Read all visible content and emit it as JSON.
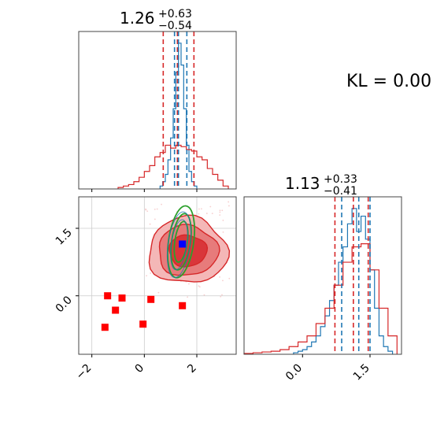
{
  "chart_data": [
    {
      "type": "histogram",
      "panel": "top-left marginal",
      "title": {
        "median": "1.26",
        "plus": "+0.63",
        "minus": "−0.54"
      },
      "xlim": [
        -2.5,
        3.5
      ],
      "x_ticks": [
        -2,
        0,
        2
      ],
      "series": [
        {
          "color": "#1f77b4",
          "bins": [
            0.6,
            0.7,
            0.8,
            0.9,
            1.0,
            1.1,
            1.2,
            1.3,
            1.4,
            1.5,
            1.6,
            1.7,
            1.8,
            1.9,
            2.0
          ],
          "heights": [
            0.02,
            0.05,
            0.1,
            0.2,
            0.35,
            0.55,
            0.8,
            1.0,
            0.85,
            0.55,
            0.3,
            0.12,
            0.05,
            0.02
          ]
        },
        {
          "color": "#d62728",
          "bins": [
            -1.0,
            -0.8,
            -0.6,
            -0.4,
            -0.2,
            0.0,
            0.2,
            0.4,
            0.6,
            0.8,
            1.0,
            1.2,
            1.4,
            1.6,
            1.8,
            2.0,
            2.2,
            2.4,
            2.6,
            2.8,
            3.0,
            3.2
          ],
          "heights": [
            0.01,
            0.02,
            0.03,
            0.05,
            0.08,
            0.12,
            0.16,
            0.22,
            0.25,
            0.3,
            0.28,
            0.3,
            0.29,
            0.27,
            0.26,
            0.22,
            0.2,
            0.14,
            0.1,
            0.06,
            0.02
          ]
        }
      ],
      "quantile_lines": [
        {
          "color": "#d62728",
          "x": [
            0.72,
            1.26,
            1.89
          ]
        },
        {
          "color": "#1f77b4",
          "x": [
            1.15,
            1.3,
            1.62
          ]
        }
      ]
    },
    {
      "type": "scatter",
      "panel": "bottom-left 2D",
      "xlim": [
        -2.5,
        3.5
      ],
      "ylim": [
        -1.3,
        2.2
      ],
      "x_ticks": [
        -2,
        0,
        2
      ],
      "y_ticks": [
        0.0,
        1.5
      ],
      "grid": true,
      "red_markers": [
        [
          -1.4,
          0.0
        ],
        [
          -0.85,
          -0.05
        ],
        [
          -1.1,
          -0.32
        ],
        [
          -1.5,
          -0.7
        ],
        [
          -0.05,
          -0.63
        ],
        [
          0.25,
          -0.08
        ],
        [
          1.45,
          -0.22
        ]
      ],
      "blue_marker": [
        1.45,
        1.15
      ],
      "red_contour_center": [
        1.65,
        1.0
      ],
      "green_contour_center": [
        1.4,
        1.2
      ]
    },
    {
      "type": "histogram",
      "panel": "bottom-right marginal",
      "title": {
        "median": "1.13",
        "plus": "+0.33",
        "minus": "−0.41"
      },
      "xlim": [
        -1.3,
        2.2
      ],
      "x_ticks": [
        0.0,
        1.5
      ],
      "series": [
        {
          "color": "#1f77b4",
          "bins": [
            -0.2,
            -0.1,
            0.0,
            0.1,
            0.2,
            0.3,
            0.4,
            0.5,
            0.6,
            0.7,
            0.8,
            0.9,
            1.0,
            1.1,
            1.2,
            1.3,
            1.4,
            1.5,
            1.6,
            1.7,
            1.8,
            1.9,
            2.0
          ],
          "heights": [
            0.01,
            0.02,
            0.03,
            0.05,
            0.08,
            0.12,
            0.18,
            0.25,
            0.35,
            0.45,
            0.6,
            0.7,
            0.85,
            0.95,
            0.8,
            0.9,
            0.75,
            0.55,
            0.3,
            0.12,
            0.05,
            0.02
          ]
        },
        {
          "color": "#d62728",
          "bins": [
            -1.3,
            -1.1,
            -0.9,
            -0.7,
            -0.5,
            -0.3,
            -0.1,
            0.1,
            0.3,
            0.5,
            0.7,
            0.9,
            1.1,
            1.3,
            1.5,
            1.7,
            1.9,
            2.1
          ],
          "heights": [
            0.005,
            0.01,
            0.015,
            0.02,
            0.03,
            0.05,
            0.08,
            0.12,
            0.2,
            0.3,
            0.45,
            0.6,
            0.7,
            0.72,
            0.55,
            0.3,
            0.12
          ]
        }
      ],
      "quantile_lines": [
        {
          "color": "#d62728",
          "x": [
            0.72,
            1.13,
            1.46
          ]
        },
        {
          "color": "#1f77b4",
          "x": [
            0.87,
            1.25,
            1.5
          ]
        }
      ]
    }
  ],
  "annotation": {
    "kl_text": "KL = 0.00"
  }
}
